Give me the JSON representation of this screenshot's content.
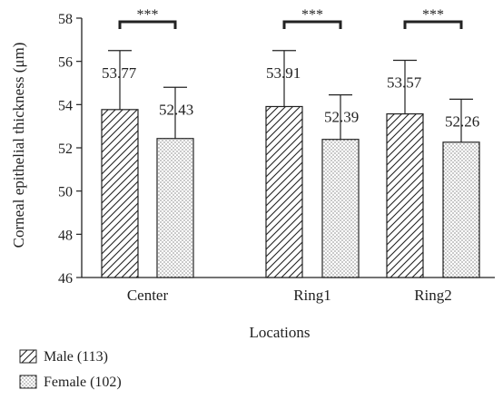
{
  "chart_data": {
    "type": "bar",
    "title": "",
    "xlabel": "Locations",
    "ylabel": "Corneal epithelial thickness (μm)",
    "ylim": [
      46,
      58
    ],
    "yticks": [
      46,
      48,
      50,
      52,
      54,
      56,
      58
    ],
    "categories": [
      "Center",
      "Ring1",
      "Ring2"
    ],
    "series": [
      {
        "name": "Male (113)",
        "pattern": "diagonal-hatch",
        "values": [
          53.77,
          53.91,
          53.57
        ],
        "labels": [
          "53.77",
          "53.91",
          "53.57"
        ],
        "error_upper": [
          56.5,
          56.5,
          56.05
        ]
      },
      {
        "name": "Female (102)",
        "pattern": "dots",
        "values": [
          52.43,
          52.39,
          52.26
        ],
        "labels": [
          "52.43",
          "52.39",
          "52.26"
        ],
        "error_upper": [
          54.8,
          54.45,
          54.25
        ]
      }
    ],
    "significance": [
      "***",
      "***",
      "***"
    ],
    "grid": false,
    "legend": "bottom-left"
  }
}
